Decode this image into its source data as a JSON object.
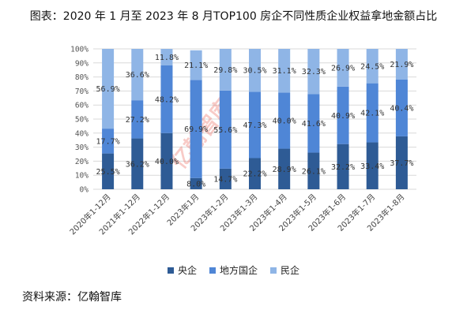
{
  "title": "图表：2020 年 1 月至 2023 年 8 月TOP100 房企不同性质企业权益拿地金额占比",
  "source": "资料来源：亿翰智库",
  "watermark": "亿翰智库",
  "colors": {
    "central": "#2e5b95",
    "local": "#4f86d6",
    "private": "#8fb5e6",
    "grid": "#d9d9d9"
  },
  "chart_data": {
    "type": "bar",
    "stacked": true,
    "percent": true,
    "categories": [
      "2020年1-12月",
      "2021年1-12月",
      "2022年1-12月",
      "2023年1月",
      "2023年1-2月",
      "2023年1-3月",
      "2023年1-4月",
      "2023年1-5月",
      "2023年1-6月",
      "2023年1-7月",
      "2023年1-8月"
    ],
    "series": [
      {
        "name": "央企",
        "values": [
          25.5,
          36.2,
          40.0,
          8.0,
          14.7,
          22.2,
          28.9,
          26.1,
          32.2,
          33.4,
          37.7
        ],
        "labels": [
          "25.5%",
          "36.2%",
          "40.0%",
          "8.0%",
          "14.7%",
          "22.2%",
          "28.9%",
          "26.1%",
          "32.2%",
          "33.4%",
          "37.7%"
        ]
      },
      {
        "name": "地方国企",
        "values": [
          17.7,
          27.2,
          48.2,
          69.9,
          55.6,
          47.3,
          40.0,
          41.6,
          40.9,
          42.1,
          40.4
        ],
        "labels": [
          "17.7%",
          "27.2%",
          "48.2%",
          "69.9%",
          "55.6%",
          "47.3%",
          "40.0%",
          "41.6%",
          "40.9%",
          "42.1%",
          "40.4%"
        ]
      },
      {
        "name": "民企",
        "values": [
          56.9,
          36.6,
          11.8,
          21.1,
          29.8,
          30.5,
          31.1,
          32.3,
          26.9,
          24.5,
          21.9
        ],
        "labels": [
          "56.9%",
          "36.6%",
          "11.8%",
          "21.1%",
          "29.8%",
          "30.5%",
          "31.1%",
          "32.3%",
          "26.9%",
          "24.5%",
          "21.9%"
        ]
      }
    ],
    "ylim": [
      0,
      100
    ],
    "yticks": [
      "0%",
      "10%",
      "20%",
      "30%",
      "40%",
      "50%",
      "60%",
      "70%",
      "80%",
      "90%",
      "100%"
    ],
    "grid": true,
    "legend": "bottom"
  }
}
